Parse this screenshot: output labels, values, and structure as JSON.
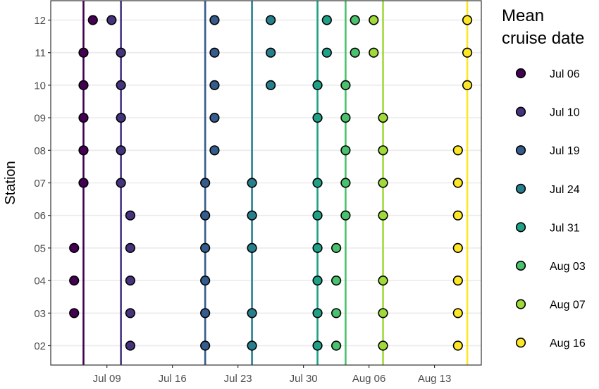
{
  "chart_data": {
    "type": "scatter",
    "title": "",
    "xlabel": "",
    "ylabel": "Station",
    "x_ticks": [
      "Jul 09",
      "Jul 16",
      "Jul 23",
      "Jul 30",
      "Aug 06",
      "Aug 13"
    ],
    "y_categories": [
      "02",
      "03",
      "04",
      "05",
      "06",
      "07",
      "08",
      "09",
      "10",
      "11",
      "12"
    ],
    "xlim": [
      "2019-07-03",
      "2019-08-18"
    ],
    "grid": true,
    "legend": {
      "title": "Mean\ncruise date",
      "placement": "right"
    },
    "series": [
      {
        "name": "Jul 06",
        "color": "#440154",
        "mean_date": "2019-07-06",
        "points": [
          {
            "station": "03",
            "date": "2019-07-05"
          },
          {
            "station": "04",
            "date": "2019-07-05"
          },
          {
            "station": "05",
            "date": "2019-07-05"
          },
          {
            "station": "07",
            "date": "2019-07-06"
          },
          {
            "station": "08",
            "date": "2019-07-06"
          },
          {
            "station": "09",
            "date": "2019-07-06"
          },
          {
            "station": "10",
            "date": "2019-07-06"
          },
          {
            "station": "11",
            "date": "2019-07-06"
          },
          {
            "station": "12",
            "date": "2019-07-07"
          }
        ]
      },
      {
        "name": "Jul 10",
        "color": "#46337E",
        "mean_date": "2019-07-10",
        "points": [
          {
            "station": "02",
            "date": "2019-07-11"
          },
          {
            "station": "03",
            "date": "2019-07-11"
          },
          {
            "station": "04",
            "date": "2019-07-11"
          },
          {
            "station": "05",
            "date": "2019-07-11"
          },
          {
            "station": "06",
            "date": "2019-07-11"
          },
          {
            "station": "07",
            "date": "2019-07-10"
          },
          {
            "station": "08",
            "date": "2019-07-10"
          },
          {
            "station": "09",
            "date": "2019-07-10"
          },
          {
            "station": "10",
            "date": "2019-07-10"
          },
          {
            "station": "11",
            "date": "2019-07-10"
          },
          {
            "station": "12",
            "date": "2019-07-09"
          }
        ]
      },
      {
        "name": "Jul 19",
        "color": "#365C8D",
        "mean_date": "2019-07-19",
        "points": [
          {
            "station": "02",
            "date": "2019-07-19"
          },
          {
            "station": "03",
            "date": "2019-07-19"
          },
          {
            "station": "04",
            "date": "2019-07-19"
          },
          {
            "station": "05",
            "date": "2019-07-19"
          },
          {
            "station": "06",
            "date": "2019-07-19"
          },
          {
            "station": "07",
            "date": "2019-07-19"
          },
          {
            "station": "08",
            "date": "2019-07-20"
          },
          {
            "station": "09",
            "date": "2019-07-20"
          },
          {
            "station": "10",
            "date": "2019-07-20"
          },
          {
            "station": "11",
            "date": "2019-07-20"
          },
          {
            "station": "12",
            "date": "2019-07-20"
          }
        ]
      },
      {
        "name": "Jul 24",
        "color": "#277F8E",
        "mean_date": "2019-07-24",
        "points": [
          {
            "station": "02",
            "date": "2019-07-24"
          },
          {
            "station": "03",
            "date": "2019-07-24"
          },
          {
            "station": "05",
            "date": "2019-07-24"
          },
          {
            "station": "06",
            "date": "2019-07-24"
          },
          {
            "station": "07",
            "date": "2019-07-24"
          },
          {
            "station": "10",
            "date": "2019-07-26"
          },
          {
            "station": "11",
            "date": "2019-07-26"
          },
          {
            "station": "12",
            "date": "2019-07-26"
          }
        ]
      },
      {
        "name": "Jul 31",
        "color": "#1FA187",
        "mean_date": "2019-07-31",
        "points": [
          {
            "station": "02",
            "date": "2019-07-31"
          },
          {
            "station": "03",
            "date": "2019-07-31"
          },
          {
            "station": "04",
            "date": "2019-07-31"
          },
          {
            "station": "05",
            "date": "2019-07-31"
          },
          {
            "station": "06",
            "date": "2019-07-31"
          },
          {
            "station": "07",
            "date": "2019-07-31"
          },
          {
            "station": "09",
            "date": "2019-07-31"
          },
          {
            "station": "10",
            "date": "2019-07-31"
          },
          {
            "station": "11",
            "date": "2019-08-01"
          },
          {
            "station": "12",
            "date": "2019-08-01"
          }
        ]
      },
      {
        "name": "Aug 03",
        "color": "#4AC16D",
        "mean_date": "2019-08-03",
        "points": [
          {
            "station": "02",
            "date": "2019-08-02"
          },
          {
            "station": "03",
            "date": "2019-08-02"
          },
          {
            "station": "04",
            "date": "2019-08-02"
          },
          {
            "station": "05",
            "date": "2019-08-02"
          },
          {
            "station": "06",
            "date": "2019-08-03"
          },
          {
            "station": "07",
            "date": "2019-08-03"
          },
          {
            "station": "08",
            "date": "2019-08-03"
          },
          {
            "station": "09",
            "date": "2019-08-03"
          },
          {
            "station": "10",
            "date": "2019-08-03"
          },
          {
            "station": "11",
            "date": "2019-08-04"
          },
          {
            "station": "12",
            "date": "2019-08-04"
          }
        ]
      },
      {
        "name": "Aug 07",
        "color": "#A0DA39",
        "mean_date": "2019-08-07",
        "points": [
          {
            "station": "02",
            "date": "2019-08-07"
          },
          {
            "station": "03",
            "date": "2019-08-07"
          },
          {
            "station": "04",
            "date": "2019-08-07"
          },
          {
            "station": "06",
            "date": "2019-08-07"
          },
          {
            "station": "07",
            "date": "2019-08-07"
          },
          {
            "station": "08",
            "date": "2019-08-07"
          },
          {
            "station": "09",
            "date": "2019-08-07"
          },
          {
            "station": "11",
            "date": "2019-08-06"
          },
          {
            "station": "12",
            "date": "2019-08-06"
          }
        ]
      },
      {
        "name": "Aug 16",
        "color": "#FDE725",
        "mean_date": "2019-08-16",
        "points": [
          {
            "station": "02",
            "date": "2019-08-15"
          },
          {
            "station": "03",
            "date": "2019-08-15"
          },
          {
            "station": "04",
            "date": "2019-08-15"
          },
          {
            "station": "05",
            "date": "2019-08-15"
          },
          {
            "station": "06",
            "date": "2019-08-15"
          },
          {
            "station": "07",
            "date": "2019-08-15"
          },
          {
            "station": "08",
            "date": "2019-08-15"
          },
          {
            "station": "10",
            "date": "2019-08-16"
          },
          {
            "station": "11",
            "date": "2019-08-16"
          },
          {
            "station": "12",
            "date": "2019-08-16"
          }
        ]
      }
    ]
  }
}
